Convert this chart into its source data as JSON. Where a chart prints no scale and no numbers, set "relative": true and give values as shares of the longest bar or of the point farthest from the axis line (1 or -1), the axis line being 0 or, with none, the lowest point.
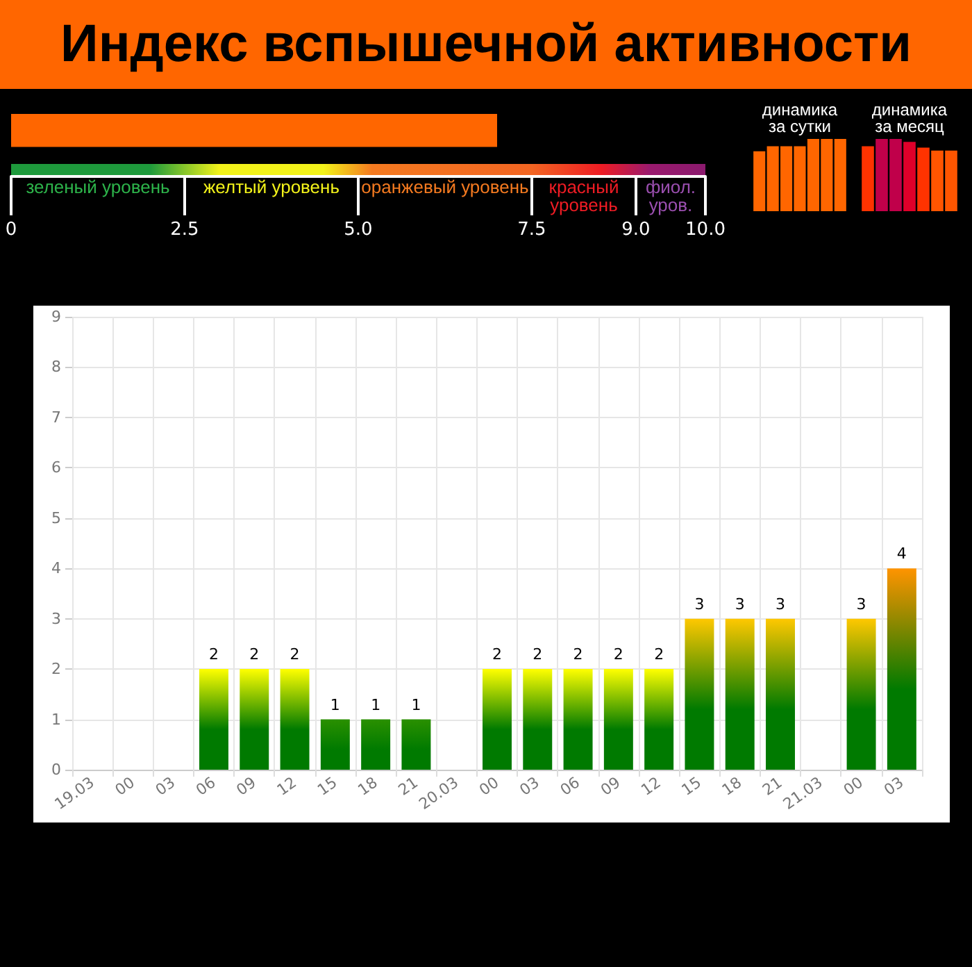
{
  "chart_data": [
    {
      "type": "bar",
      "title": "Индекс вспышечной активности",
      "orientation": "horizontal",
      "categories": [
        null
      ],
      "values": [
        7.0
      ],
      "color": "#ff6600",
      "xlim": [
        0,
        10
      ],
      "xticks": [
        0,
        2.5,
        {
          "value": 5,
          "label": "5.0"
        },
        7.5,
        {
          "value": 9,
          "label": "9.0"
        },
        {
          "value": 10,
          "label": "10.0"
        }
      ],
      "tick_labels": "x",
      "grid": false,
      "annotations": [
        "зеленый уровень",
        "желтый уровень",
        "оранжевый уровень",
        "красный уровень",
        "фиол. уров."
      ]
    },
    {
      "type": "bar",
      "title": "динамика за сутки",
      "relative": true,
      "categories": [
        null,
        null,
        null,
        null,
        null,
        null,
        null
      ],
      "values": [
        0.83,
        0.9,
        0.9,
        0.9,
        1,
        1,
        1
      ],
      "color": "#ff6600",
      "grid": false
    },
    {
      "type": "bar",
      "title": "динамика за месяц",
      "relative": true,
      "categories": [
        null,
        null,
        null,
        null,
        null,
        null,
        null
      ],
      "values": [
        0.9,
        1,
        1,
        0.96,
        0.88,
        0.84,
        0.84
      ],
      "colors": [
        "#ff3300",
        "#c0004a",
        "#c0004a",
        "#e0002a",
        "#ff3300",
        "#ff5500",
        "#ff5500"
      ],
      "grid": false
    },
    {
      "type": "bar",
      "categories": [
        "19.03",
        "00",
        "03",
        "06",
        "09",
        "12",
        "15",
        "18",
        "21",
        "20.03",
        "00",
        "03",
        "06",
        "09",
        "12",
        "15",
        "18",
        "21",
        "21.03",
        "00",
        "03"
      ],
      "values": [
        0,
        0,
        0,
        2,
        2,
        2,
        1,
        1,
        1,
        0,
        2,
        2,
        2,
        2,
        2,
        3,
        3,
        3,
        0,
        3,
        4
      ],
      "colors": [
        "#008000",
        "#008000",
        "#008000",
        "#ffff00",
        "#ffff00",
        "#ffff00",
        "#2a9000",
        "#2a9000",
        "#2a9000",
        "#008000",
        "#ffff00",
        "#ffff00",
        "#ffff00",
        "#ffff00",
        "#ffff00",
        "#ffc800",
        "#ffc800",
        "#ffc800",
        "#008000",
        "#ffc800",
        "#ff9400"
      ],
      "value_labels": [
        null,
        null,
        null,
        "2",
        "2",
        "2",
        "1",
        "1",
        "1",
        null,
        "2",
        "2",
        "2",
        "2",
        "2",
        "3",
        "3",
        "3",
        null,
        "3",
        "4"
      ],
      "ylim": [
        0,
        9
      ],
      "yticks": [
        0,
        1,
        2,
        3,
        4,
        5,
        6,
        7,
        8,
        9
      ],
      "grid": true
    }
  ]
}
